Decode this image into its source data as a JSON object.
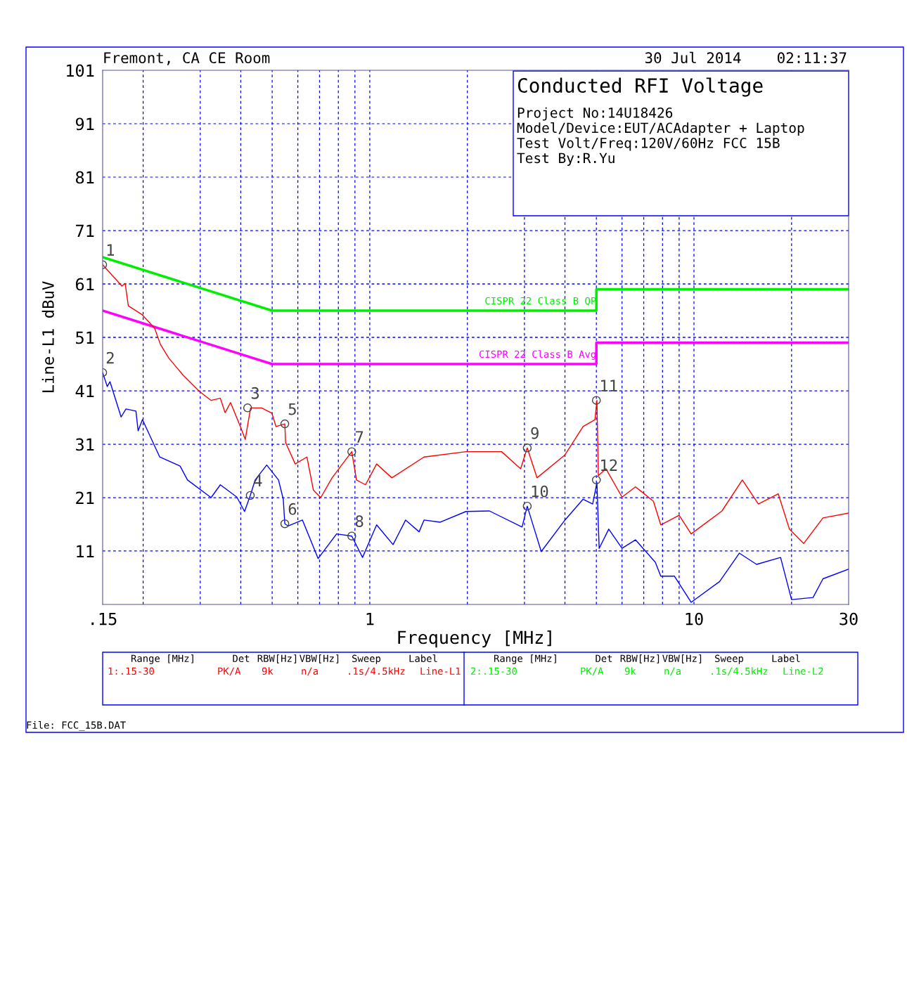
{
  "chart_data": {
    "type": "line",
    "title": "Conducted RFI Voltage",
    "xlabel": "Frequency [MHz]",
    "ylabel": "Line-L1 dBuV",
    "log": "x",
    "xlim": [
      0.15,
      30
    ],
    "ylim": [
      1,
      101
    ],
    "xticks": [
      {
        "value": 0.15,
        "label": ".15"
      },
      {
        "value": 0.2,
        "label": null
      },
      {
        "value": 0.3,
        "label": null
      },
      {
        "value": 0.4,
        "label": null
      },
      {
        "value": 0.5,
        "label": null
      },
      {
        "value": 0.6,
        "label": null
      },
      {
        "value": 0.7,
        "label": null
      },
      {
        "value": 0.8,
        "label": null
      },
      {
        "value": 0.9,
        "label": null
      },
      1,
      {
        "value": 2,
        "label": null
      },
      {
        "value": 3,
        "label": null
      },
      {
        "value": 4,
        "label": null
      },
      {
        "value": 5,
        "label": null
      },
      {
        "value": 6,
        "label": null
      },
      {
        "value": 7,
        "label": null
      },
      {
        "value": 8,
        "label": null
      },
      {
        "value": 9,
        "label": null
      },
      10,
      {
        "value": 20,
        "label": null
      },
      30
    ],
    "yticks": [
      {
        "value": 1,
        "label": null
      },
      11,
      21,
      31,
      41,
      51,
      61,
      71,
      81,
      91,
      101
    ],
    "grid": true,
    "legend": false,
    "line_style": "solid",
    "marker": "none",
    "series": [
      {
        "color": "#ff0000",
        "x": [
          0.15,
          0.172,
          0.176,
          0.18,
          0.198,
          0.217,
          0.226,
          0.24,
          0.265,
          0.298,
          0.324,
          0.346,
          0.358,
          0.372,
          0.399,
          0.413,
          0.429,
          0.464,
          0.499,
          0.514,
          0.547,
          0.55,
          0.589,
          0.64,
          0.67,
          0.706,
          0.765,
          0.88,
          0.91,
          0.97,
          1.05,
          1.17,
          1.47,
          1.98,
          2.55,
          2.92,
          3.06,
          3.28,
          4.0,
          4.55,
          4.95,
          5.02,
          5.07,
          5.35,
          6.0,
          6.6,
          6.8,
          7.5,
          7.9,
          9.0,
          9.8,
          12.2,
          14.1,
          15.8,
          18.2,
          19.7,
          21.8,
          25.0,
          30
        ],
        "values": [
          64.6,
          60.6,
          61.1,
          56.9,
          55.3,
          52.7,
          49.7,
          47.1,
          44.0,
          40.9,
          39.2,
          39.6,
          36.9,
          38.8,
          34.3,
          31.9,
          37.8,
          37.8,
          36.8,
          34.3,
          34.8,
          31.3,
          27.3,
          28.6,
          22.4,
          21.0,
          24.7,
          29.6,
          24.3,
          23.4,
          27.3,
          24.7,
          28.6,
          29.6,
          29.6,
          26.4,
          30.3,
          24.7,
          29.0,
          34.3,
          35.6,
          39.2,
          25.1,
          26.4,
          21.1,
          23.0,
          22.4,
          20.3,
          15.9,
          17.7,
          14.2,
          18.5,
          24.3,
          19.8,
          21.7,
          15.1,
          12.4,
          17.2,
          18.1
        ]
      },
      {
        "color": "#0000ff",
        "x": [
          0.15,
          0.155,
          0.158,
          0.171,
          0.177,
          0.19,
          0.193,
          0.199,
          0.225,
          0.26,
          0.274,
          0.324,
          0.346,
          0.389,
          0.411,
          0.428,
          0.443,
          0.481,
          0.523,
          0.541,
          0.547,
          0.56,
          0.62,
          0.693,
          0.79,
          0.88,
          0.95,
          1.05,
          1.18,
          1.29,
          1.42,
          1.47,
          1.65,
          1.98,
          2.34,
          2.95,
          3.06,
          3.38,
          4.0,
          4.55,
          4.87,
          5.02,
          5.1,
          5.46,
          6.0,
          6.6,
          7.6,
          7.9,
          8.7,
          9.8,
          12.0,
          13.8,
          15.6,
          18.5,
          20.0,
          23.3,
          25.0,
          30
        ],
        "values": [
          44.4,
          41.8,
          42.7,
          36.1,
          37.6,
          37.2,
          33.5,
          35.6,
          28.6,
          26.9,
          24.3,
          21.0,
          23.4,
          21.1,
          18.4,
          21.4,
          24.3,
          27.1,
          24.3,
          20.7,
          16.1,
          15.7,
          16.8,
          9.6,
          14.2,
          13.8,
          9.8,
          15.9,
          12.2,
          16.8,
          14.6,
          16.8,
          16.4,
          18.4,
          18.5,
          15.5,
          19.4,
          10.9,
          16.8,
          20.7,
          19.8,
          23.8,
          11.5,
          15.1,
          11.5,
          13.1,
          8.9,
          6.3,
          6.3,
          1.4,
          5.3,
          10.6,
          8.5,
          9.8,
          1.9,
          2.3,
          5.8,
          7.6
        ]
      },
      {
        "name": "CISPR 22 Class B QP",
        "color": "#00ee00",
        "x": [
          0.15,
          0.5,
          5,
          5,
          30
        ],
        "values": [
          66,
          56,
          56,
          60,
          60
        ]
      },
      {
        "name": "CISPR 22 Class B Avg",
        "color": "#ff00ff",
        "x": [
          0.15,
          0.5,
          5,
          5,
          30
        ],
        "values": [
          56,
          46,
          46,
          50,
          50
        ]
      }
    ],
    "annotations": [
      {
        "text": "1",
        "x": 0.15,
        "y": 64.6
      },
      {
        "text": "2",
        "x": 0.15,
        "y": 44.4
      },
      {
        "text": "3",
        "x": 0.42,
        "y": 37.8
      },
      {
        "text": "4",
        "x": 0.428,
        "y": 21.4
      },
      {
        "text": "5",
        "x": 0.547,
        "y": 34.8
      },
      {
        "text": "6",
        "x": 0.547,
        "y": 16.1
      },
      {
        "text": "7",
        "x": 0.88,
        "y": 29.6
      },
      {
        "text": "8",
        "x": 0.88,
        "y": 13.8
      },
      {
        "text": "9",
        "x": 3.06,
        "y": 30.3
      },
      {
        "text": "10",
        "x": 3.06,
        "y": 19.4
      },
      {
        "text": "11",
        "x": 5.0,
        "y": 39.2
      },
      {
        "text": "12",
        "x": 5.0,
        "y": 24.3
      },
      "Fremont, CA CE Room",
      "30 Jul 2014    02:11:37",
      "Project No:14U18426",
      "Model/Device:EUT/ACAdapter + Laptop",
      "Test Volt/Freq:120V/60Hz FCC 15B",
      "Test By:R.Yu",
      "Range [MHz]",
      "Det",
      "RBW[Hz]",
      "VBW[Hz]",
      "Sweep",
      "Label",
      "1:.15-30",
      "PK/A",
      "9k",
      "n/a",
      ".1s/4.5kHz",
      "Line-L1",
      "Range [MHz]",
      "Det",
      "RBW[Hz]",
      "VBW[Hz]",
      "Sweep",
      "Label",
      "2:.15-30",
      "PK/A",
      "9k",
      "n/a",
      ".1s/4.5kHz",
      "Line-L2",
      "File: FCC_15B.DAT"
    ]
  }
}
